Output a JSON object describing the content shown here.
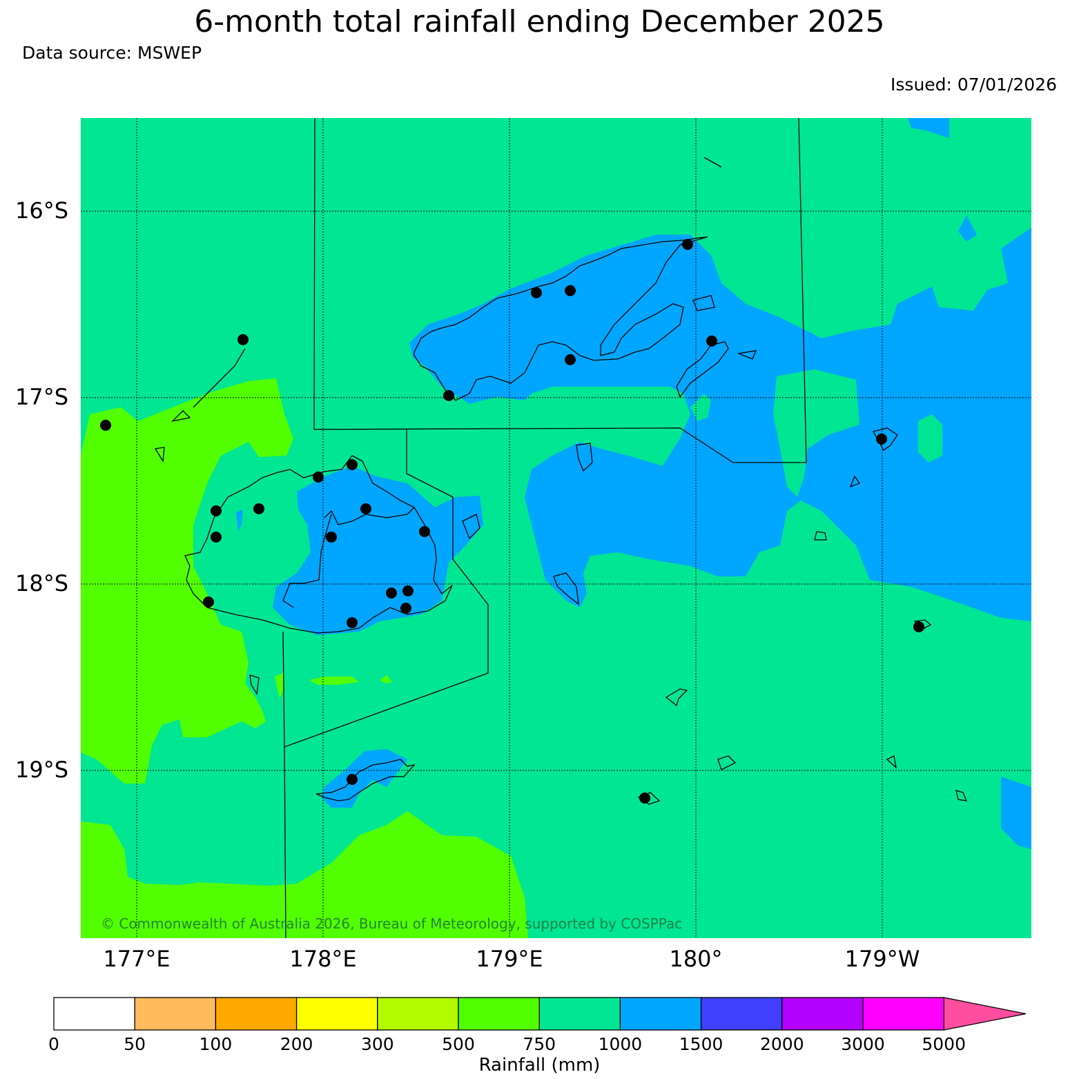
{
  "title": "6-month total rainfall ending December 2025",
  "source": "Data source: MSWEP",
  "issued": "Issued: 07/01/2026",
  "copyright": "© Commonwealth of Australia 2026, Bureau of Meteorology, supported by COSPPac",
  "lat_labels": [
    "16°S",
    "17°S",
    "18°S",
    "19°S"
  ],
  "lon_labels": [
    "177°E",
    "178°E",
    "179°E",
    "180°",
    "179°W"
  ],
  "colorbar": {
    "label": "Rainfall (mm)",
    "ticks": [
      "0",
      "50",
      "100",
      "200",
      "300",
      "500",
      "750",
      "1000",
      "1500",
      "2000",
      "3000",
      "5000"
    ],
    "colors": [
      "#ffffff",
      "#ffbb5c",
      "#ffa800",
      "#ffff00",
      "#b2fa00",
      "#52ff00",
      "#00e692",
      "#00a6ff",
      "#3f3ffd",
      "#b300ff",
      "#ff00ff"
    ],
    "extend_color": "#ff4ea0"
  },
  "category_colors": {
    "500-750": "#52ff00",
    "750-1000": "#00e692",
    "1000-1500": "#00a6ff"
  }
}
